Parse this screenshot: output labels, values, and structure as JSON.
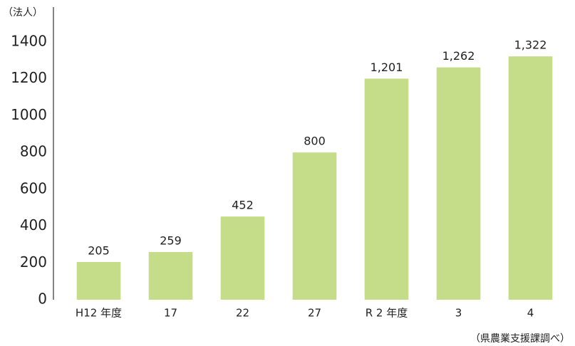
{
  "chart_data": {
    "type": "bar",
    "y_axis_label": "（法人）",
    "source": "（県農業支援課調べ）",
    "categories": [
      "H12 年度",
      "17",
      "22",
      "27",
      "R 2 年度",
      "3",
      "4"
    ],
    "values": [
      205,
      259,
      452,
      800,
      1201,
      1262,
      1322
    ],
    "value_labels": [
      "205",
      "259",
      "452",
      "800",
      "1,201",
      "1,262",
      "1,322"
    ],
    "color": "#c5dd89",
    "ylim": [
      0,
      1400
    ],
    "yticks": [
      0,
      200,
      400,
      600,
      800,
      1000,
      1200,
      1400
    ],
    "grid": false
  }
}
